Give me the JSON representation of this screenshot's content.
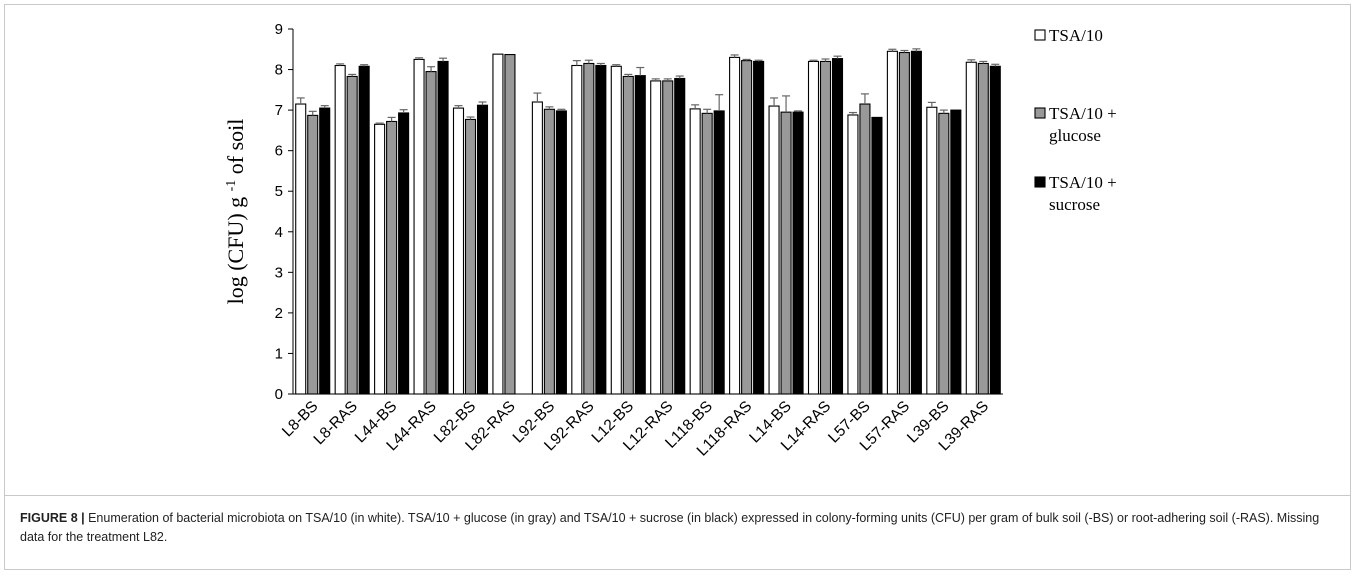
{
  "caption": {
    "label": "FIGURE 8 |",
    "text": " Enumeration of bacterial microbiota on TSA/10 (in white). TSA/10 + glucose (in gray) and TSA/10 + sucrose (in black) expressed in colony-forming units (CFU) per gram of bulk soil (-BS) or root-adhering soil (-RAS). Missing data for the treatment L82."
  },
  "chart_data": {
    "type": "bar",
    "ylabel_main": "log (CFU) g ",
    "ylabel_sup": "-1",
    "ylabel_tail": " of soil",
    "ylim": [
      0,
      9
    ],
    "yticks": [
      0,
      1,
      2,
      3,
      4,
      5,
      6,
      7,
      8,
      9
    ],
    "grid": false,
    "legend_position": "right",
    "categories": [
      "L8-BS",
      "L8-RAS",
      "L44-BS",
      "L44-RAS",
      "L82-BS",
      "L82-RAS",
      "L92-BS",
      "L92-RAS",
      "L12-BS",
      "L12-RAS",
      "L118-BS",
      "L118-RAS",
      "L14-BS",
      "L14-RAS",
      "L57-BS",
      "L57-RAS",
      "L39-BS",
      "L39-RAS"
    ],
    "series": [
      {
        "name": "TSA/10",
        "color": "#ffffff",
        "values": [
          7.15,
          8.1,
          6.65,
          8.25,
          7.05,
          8.38,
          7.2,
          8.1,
          8.08,
          7.72,
          7.03,
          8.3,
          7.1,
          8.2,
          6.88,
          8.45,
          7.07,
          8.18
        ],
        "errors": [
          0.15,
          0.04,
          0.03,
          0.04,
          0.06,
          0.0,
          0.22,
          0.12,
          0.04,
          0.05,
          0.1,
          0.06,
          0.2,
          0.03,
          0.06,
          0.05,
          0.12,
          0.06
        ]
      },
      {
        "name": "TSA/10 + glucose",
        "color": "#999999",
        "values": [
          6.87,
          7.83,
          6.72,
          7.95,
          6.77,
          8.37,
          7.02,
          8.15,
          7.83,
          7.72,
          6.92,
          8.22,
          6.95,
          8.2,
          7.15,
          8.42,
          6.92,
          8.15
        ],
        "errors": [
          0.1,
          0.05,
          0.1,
          0.12,
          0.06,
          0.0,
          0.06,
          0.08,
          0.05,
          0.05,
          0.1,
          0.03,
          0.4,
          0.06,
          0.25,
          0.05,
          0.08,
          0.05
        ]
      },
      {
        "name": "TSA/10 + sucrose",
        "color": "#000000",
        "values": [
          7.05,
          8.08,
          6.93,
          8.2,
          7.12,
          null,
          6.98,
          8.1,
          7.85,
          7.78,
          6.98,
          8.2,
          6.95,
          8.27,
          6.82,
          8.45,
          7.0,
          8.08
        ],
        "errors": [
          0.06,
          0.04,
          0.08,
          0.08,
          0.08,
          null,
          0.04,
          0.05,
          0.2,
          0.06,
          0.4,
          0.03,
          0.03,
          0.06,
          0.0,
          0.06,
          0.0,
          0.05
        ]
      }
    ],
    "legend": [
      {
        "lines": [
          "TSA/10"
        ]
      },
      {
        "lines": [
          "TSA/10 +",
          "glucose"
        ]
      },
      {
        "lines": [
          "TSA/10 +",
          "sucrose"
        ]
      }
    ]
  }
}
